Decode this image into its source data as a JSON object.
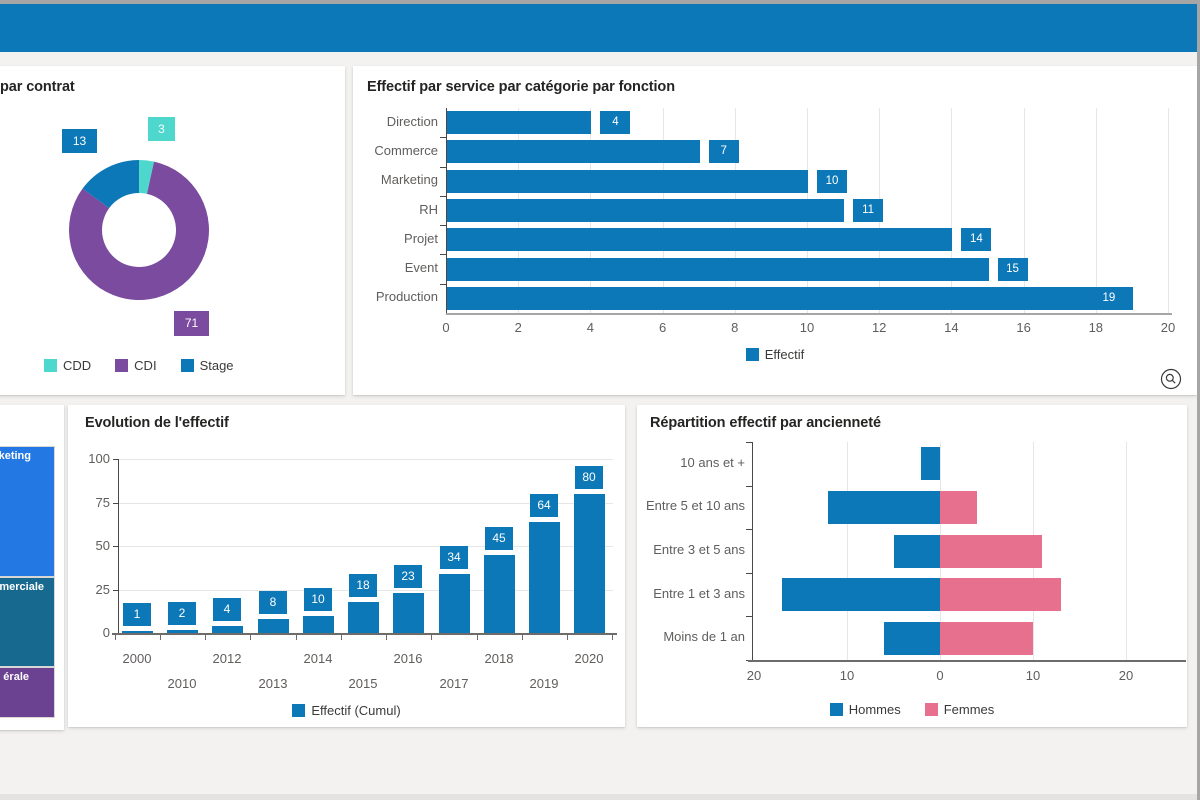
{
  "window": {
    "top_strip_color": "#a6a6a6",
    "banner_color": "#0c78b8",
    "background_color": "#f3f2f1"
  },
  "icons": {
    "service_card_corner": "magnifier-circle-icon"
  },
  "chart_data": [
    {
      "id": "contrat",
      "type": "pie",
      "subtype": "donut",
      "title": "par contrat",
      "labels": [
        "CDD",
        "CDI",
        "Stage"
      ],
      "values": [
        3,
        71,
        13
      ],
      "colors": [
        "#4ed7cc",
        "#7a4b9e",
        "#0c78b8"
      ],
      "legend": [
        "CDD",
        "CDI",
        "Stage"
      ],
      "legend_position": "bottom",
      "data_labels_shown": true
    },
    {
      "id": "service",
      "type": "bar",
      "orientation": "horizontal",
      "title": "Effectif par service par catégorie par fonction",
      "categories": [
        "Direction",
        "Commerce",
        "Marketing",
        "RH",
        "Projet",
        "Event",
        "Production"
      ],
      "values": [
        4,
        7,
        10,
        11,
        14,
        15,
        19
      ],
      "xlim": [
        0,
        20
      ],
      "xticks": [
        0,
        2,
        4,
        6,
        8,
        10,
        12,
        14,
        16,
        18,
        20
      ],
      "legend": [
        "Effectif"
      ],
      "legend_position": "bottom",
      "color": "#0c78b8",
      "grid": true
    },
    {
      "id": "directions",
      "type": "treemap",
      "visible_labels": [
        "keting",
        "mmerciale",
        "érale"
      ],
      "colors": [
        "#2478e4",
        "#17698f",
        "#6b4191"
      ]
    },
    {
      "id": "evolution",
      "type": "bar",
      "orientation": "vertical",
      "title": "Evolution de l'effectif",
      "categories": [
        "2000",
        "2010",
        "2012",
        "2013",
        "2014",
        "2015",
        "2016",
        "2017",
        "2018",
        "2019",
        "2020"
      ],
      "values": [
        1,
        2,
        4,
        8,
        10,
        18,
        23,
        34,
        45,
        64,
        80
      ],
      "ylim": [
        0,
        100
      ],
      "yticks": [
        0,
        25,
        50,
        75,
        100
      ],
      "legend": [
        "Effectif (Cumul)"
      ],
      "legend_position": "bottom",
      "color": "#0c78b8",
      "grid": true
    },
    {
      "id": "anciennete",
      "type": "bar",
      "orientation": "horizontal-diverging",
      "title": "Répartition effectif par ancienneté",
      "categories": [
        "10 ans et +",
        "Entre 5 et 10 ans",
        "Entre 3 et 5 ans",
        "Entre 1 et 3 ans",
        "Moins de 1 an"
      ],
      "series": [
        {
          "name": "Hommes",
          "values": [
            2,
            12,
            5,
            17,
            6
          ],
          "color": "#0c78b8"
        },
        {
          "name": "Femmes",
          "values": [
            0,
            4,
            11,
            13,
            10
          ],
          "color": "#e8708f"
        }
      ],
      "xlim": [
        -20,
        20
      ],
      "xtick_labels": [
        "20",
        "10",
        "0",
        "10",
        "20"
      ],
      "legend": [
        "Hommes",
        "Femmes"
      ],
      "legend_position": "bottom",
      "grid": true
    }
  ]
}
